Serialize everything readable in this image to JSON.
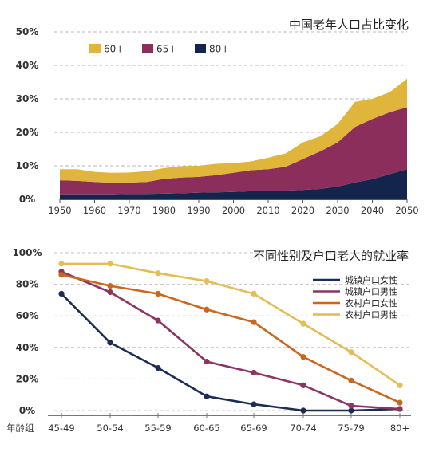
{
  "chart_data": [
    {
      "type": "area",
      "stacked": true,
      "title": "中国老年人口占比变化",
      "x": [
        1950,
        1955,
        1960,
        1965,
        1970,
        1975,
        1980,
        1985,
        1990,
        1995,
        2000,
        2005,
        2010,
        2015,
        2020,
        2025,
        2030,
        2035,
        2040,
        2045,
        2050
      ],
      "x_ticks": [
        "1950",
        "1960",
        "1970",
        "1980",
        "1990",
        "2000",
        "2010",
        "2020",
        "2030",
        "2040",
        "2050"
      ],
      "y_ticks": [
        "0%",
        "10%",
        "20%",
        "30%",
        "40%",
        "50%"
      ],
      "ylim": [
        0,
        50
      ],
      "grid": true,
      "legend_position": "top-left",
      "series": [
        {
          "name": "80+",
          "color": "#14254d",
          "values": [
            1.5,
            1.5,
            1.5,
            1.5,
            1.6,
            1.6,
            1.7,
            1.8,
            2.0,
            2.1,
            2.2,
            2.4,
            2.5,
            2.6,
            2.8,
            3.1,
            3.8,
            5.0,
            6.0,
            7.5,
            9.0
          ]
        },
        {
          "name": "65+",
          "color": "#8c2e5c",
          "values": [
            4.2,
            4.0,
            3.7,
            3.4,
            3.4,
            3.6,
            4.4,
            4.7,
            4.7,
            5.1,
            5.7,
            6.3,
            6.5,
            7.1,
            9.2,
            11.2,
            13.2,
            16.6,
            18.0,
            18.5,
            18.5
          ]
        },
        {
          "name": "60+",
          "color": "#e0b53c",
          "values": [
            3.3,
            3.5,
            3.0,
            3.0,
            3.0,
            3.2,
            3.2,
            3.4,
            3.3,
            3.4,
            2.9,
            2.6,
            3.4,
            4.0,
            5.0,
            4.5,
            5.5,
            7.5,
            6.0,
            6.0,
            8.5
          ]
        }
      ]
    },
    {
      "type": "line",
      "title": "不同性别及户口老人的就业率",
      "xlabel": "年龄组",
      "categories": [
        "45-49",
        "50-54",
        "55-59",
        "60-65",
        "65-69",
        "70-74",
        "75-79",
        "80+"
      ],
      "y_ticks": [
        "0%",
        "20%",
        "40%",
        "60%",
        "80%",
        "100%"
      ],
      "ylim": [
        0,
        100
      ],
      "grid": true,
      "legend_position": "top-right",
      "series": [
        {
          "name": "城镇户口女性",
          "color": "#1b2c55",
          "values": [
            74,
            43,
            27,
            9,
            4,
            0,
            0,
            1
          ]
        },
        {
          "name": "城镇户口男性",
          "color": "#8a3563",
          "values": [
            88,
            75,
            57,
            31,
            24,
            16,
            3,
            1
          ]
        },
        {
          "name": "农村户口女性",
          "color": "#c9671e",
          "values": [
            86,
            79,
            74,
            64,
            56,
            34,
            19,
            5
          ]
        },
        {
          "name": "农村户口男性",
          "color": "#e3bd57",
          "values": [
            93,
            93,
            87,
            82,
            74,
            55,
            37,
            16
          ]
        }
      ]
    }
  ]
}
